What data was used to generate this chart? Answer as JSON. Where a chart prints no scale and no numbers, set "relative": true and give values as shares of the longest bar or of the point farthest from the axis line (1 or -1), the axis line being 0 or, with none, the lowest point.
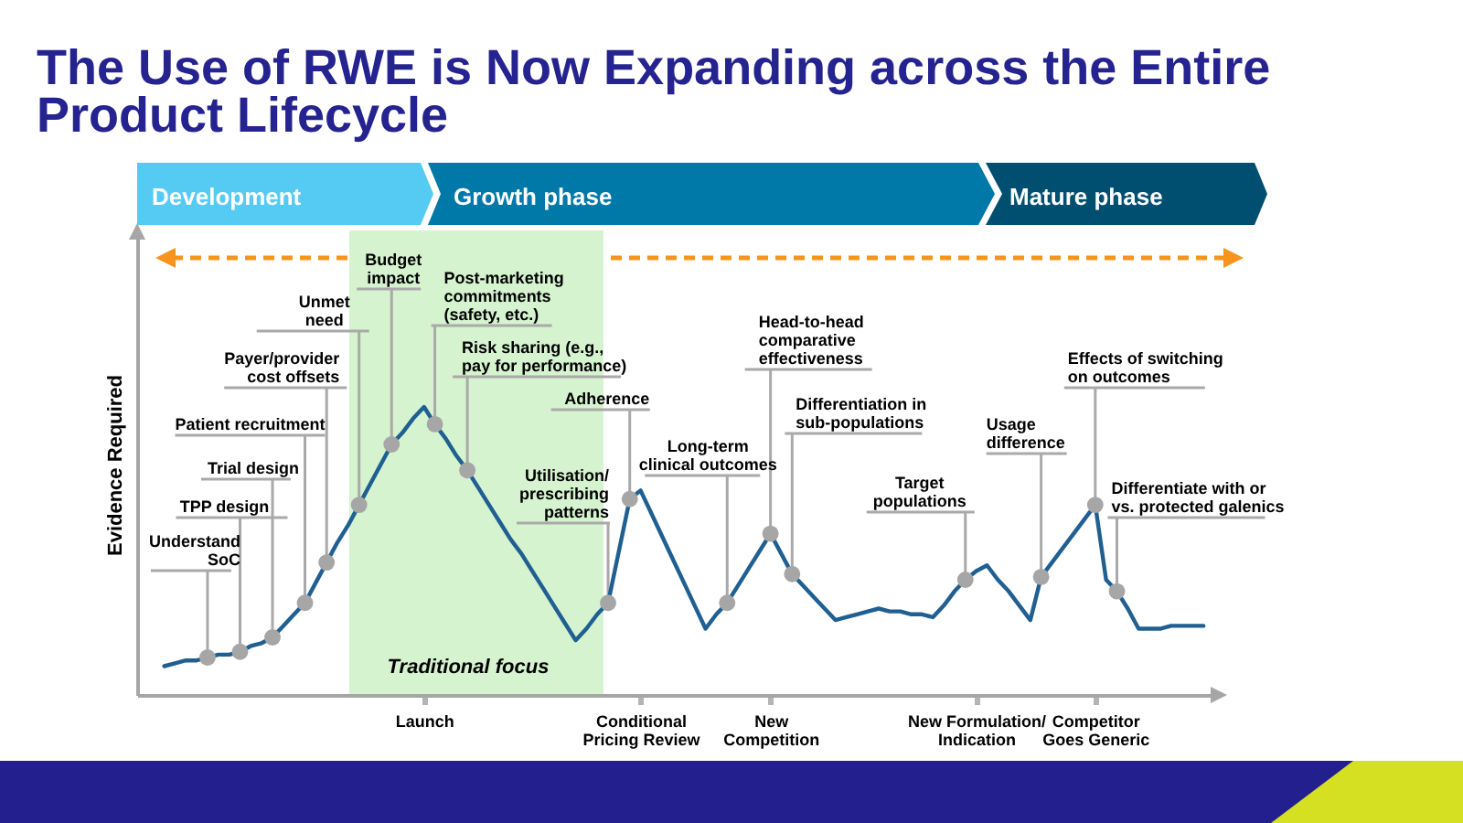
{
  "chart_data": {
    "type": "line",
    "title": "The Use of RWE is Now Expanding across the Entire Product Lifecycle",
    "ylabel": "Evidence Required",
    "relative": true,
    "categories": [
      null,
      null,
      null,
      null,
      null,
      null,
      null,
      null,
      null,
      null,
      null,
      null,
      null,
      null,
      null,
      null,
      null,
      null,
      null,
      null,
      null,
      null,
      null,
      null,
      null,
      null,
      "Launch",
      null,
      null,
      null,
      null,
      null,
      null,
      null,
      null,
      null,
      null,
      null,
      null,
      null,
      null,
      null,
      null,
      null,
      null,
      null,
      "Conditional Pricing Review",
      null,
      null,
      null,
      null,
      null,
      null,
      null,
      null,
      null,
      null,
      null,
      "New Competition",
      null,
      null,
      null,
      null,
      null,
      null,
      null,
      null,
      null,
      null,
      null,
      null,
      null,
      null,
      null,
      null,
      null,
      null,
      "New Formulation/ Indication",
      null,
      null,
      null,
      null,
      null,
      null,
      null,
      null,
      null,
      null,
      "Competitor Goes Generic",
      null,
      null,
      null,
      null,
      null,
      null,
      null,
      null,
      null,
      null,
      null
    ],
    "series": [
      {
        "color": "#1f5f91",
        "values": [
          null,
          null,
          0.1,
          0.11,
          0.12,
          0.12,
          0.13,
          0.14,
          0.14,
          0.15,
          0.17,
          0.18,
          0.2,
          0.24,
          0.28,
          0.32,
          0.39,
          0.46,
          0.53,
          0.59,
          0.66,
          0.73,
          0.8,
          0.87,
          0.91,
          0.96,
          1,
          0.94,
          0.89,
          0.83,
          0.78,
          0.72,
          0.66,
          0.6,
          0.54,
          0.49,
          0.43,
          0.37,
          0.31,
          0.25,
          0.19,
          0.23,
          0.28,
          0.32,
          0.5,
          0.68,
          0.71,
          0.63,
          0.55,
          0.47,
          0.39,
          0.31,
          0.23,
          0.28,
          0.32,
          0.38,
          0.44,
          0.5,
          0.56,
          0.49,
          0.42,
          0.38,
          0.34,
          0.3,
          0.26,
          0.27,
          0.28,
          0.29,
          0.3,
          0.29,
          0.29,
          0.28,
          0.28,
          0.27,
          0.31,
          0.36,
          0.4,
          0.43,
          0.45,
          0.4,
          0.36,
          0.31,
          0.26,
          0.41,
          0.46,
          0.51,
          0.56,
          0.61,
          0.66,
          0.4,
          0.36,
          0.3,
          0.23,
          0.23,
          0.23,
          0.24,
          0.24,
          0.24,
          0.24,
          null
        ]
      },
      {
        "type": "scatter",
        "color": "#a6a6a6",
        "values": [
          null,
          null,
          null,
          null,
          null,
          null,
          0.13,
          null,
          null,
          0.15,
          null,
          null,
          0.2,
          null,
          null,
          0.32,
          null,
          0.46,
          null,
          null,
          0.66,
          null,
          null,
          0.87,
          null,
          null,
          null,
          0.94,
          null,
          null,
          0.78,
          null,
          null,
          null,
          null,
          null,
          null,
          null,
          null,
          null,
          null,
          null,
          null,
          0.32,
          null,
          0.68,
          null,
          null,
          null,
          null,
          null,
          null,
          null,
          null,
          0.32,
          null,
          null,
          null,
          0.56,
          null,
          0.42,
          null,
          null,
          null,
          null,
          null,
          null,
          null,
          null,
          null,
          null,
          null,
          null,
          null,
          null,
          null,
          0.4,
          null,
          null,
          null,
          null,
          null,
          null,
          0.41,
          null,
          null,
          null,
          null,
          0.66,
          null,
          0.36,
          null,
          null,
          null,
          null,
          null,
          null,
          null,
          null,
          null
        ]
      }
    ],
    "annotations": [
      "Development",
      "Growth phase",
      "Mature phase",
      "Understand SoC",
      "TPP design",
      "Trial design",
      "Patient recruitment",
      "Payer/provider cost offsets",
      "Unmet need",
      "Budget impact",
      "Post-marketing commitments (safety, etc.)",
      "Risk sharing (e.g., pay for performance)",
      "Utilisation/ prescribing patterns",
      "Adherence",
      "Long-term clinical outcomes",
      "Head-to-head comparative effectiveness",
      "Differentiation in sub-populations",
      "Target populations",
      "Usage difference",
      "Effects of switching on outcomes",
      "Differentiate with or vs. protected galenics",
      "Traditional focus"
    ]
  }
}
